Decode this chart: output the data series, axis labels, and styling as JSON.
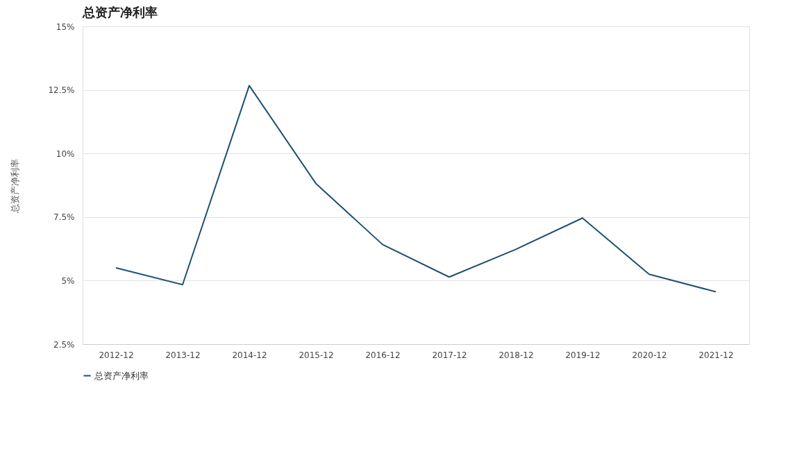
{
  "chart_data": {
    "type": "line",
    "title": "总资产净利率",
    "ylabel": "总资产净利率",
    "categories": [
      "2012-12",
      "2013-12",
      "2014-12",
      "2015-12",
      "2016-12",
      "2017-12",
      "2018-12",
      "2019-12",
      "2020-12",
      "2021-12"
    ],
    "series": [
      {
        "name": "总资产净利率",
        "color": "#1d4f73",
        "values": [
          5.5,
          4.84,
          12.67,
          8.82,
          6.42,
          5.14,
          6.23,
          7.46,
          5.25,
          4.56
        ]
      }
    ],
    "ylim": [
      2.5,
      15
    ],
    "yticks": [
      {
        "value": 2.5,
        "label": "2.5%"
      },
      {
        "value": 5,
        "label": "5%"
      },
      {
        "value": 7.5,
        "label": "7.5%"
      },
      {
        "value": 10,
        "label": "10%"
      },
      {
        "value": 12.5,
        "label": "12.5%"
      },
      {
        "value": 15,
        "label": "15%"
      }
    ],
    "grid": "y",
    "legend": "bottom",
    "marker": "none",
    "line_style": "solid"
  }
}
